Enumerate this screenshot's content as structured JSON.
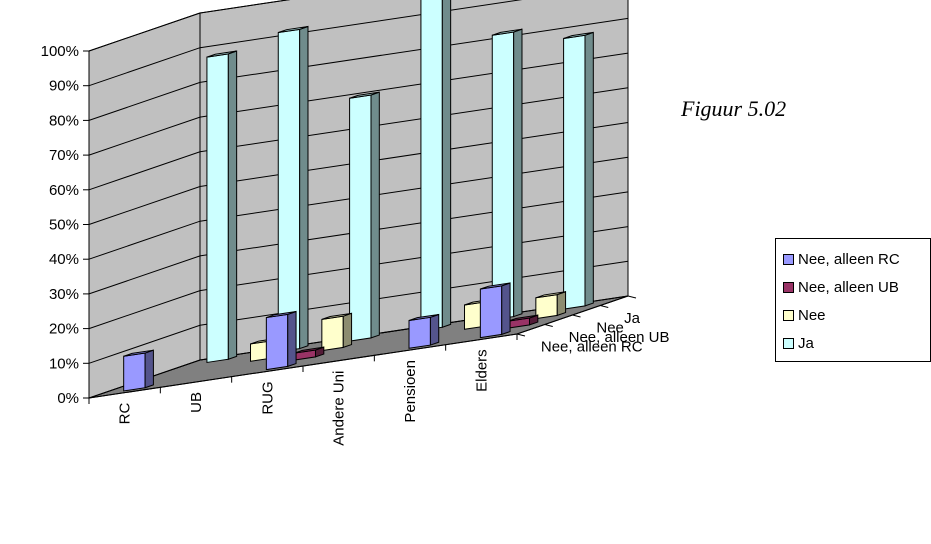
{
  "caption": "Figuur 5.02",
  "colors": {
    "nee_alleen_rc": "#9999ff",
    "nee_alleen_ub": "#993366",
    "nee": "#ffffcc",
    "ja": "#ccffff",
    "wall": "#c0c0c0",
    "floor": "#808080"
  },
  "chart_data": {
    "type": "bar",
    "variant": "3d-column",
    "title": "",
    "categories": [
      "RC",
      "UB",
      "RUG",
      "Andere Uni",
      "Pensioen",
      "Elders"
    ],
    "yticks": [
      "0%",
      "10%",
      "20%",
      "30%",
      "40%",
      "50%",
      "60%",
      "70%",
      "80%",
      "90%",
      "100%"
    ],
    "ylim": [
      0,
      100
    ],
    "series": [
      {
        "name": "Nee, alleen RC",
        "values": [
          10,
          0,
          15,
          0,
          8,
          14
        ]
      },
      {
        "name": "Nee, alleen UB",
        "values": [
          0,
          0,
          2,
          0,
          0,
          2
        ]
      },
      {
        "name": "Nee",
        "values": [
          0,
          5,
          9,
          0,
          7,
          6
        ]
      },
      {
        "name": "Ja",
        "values": [
          88,
          92,
          70,
          96,
          82,
          78
        ]
      }
    ],
    "legend": "right"
  }
}
